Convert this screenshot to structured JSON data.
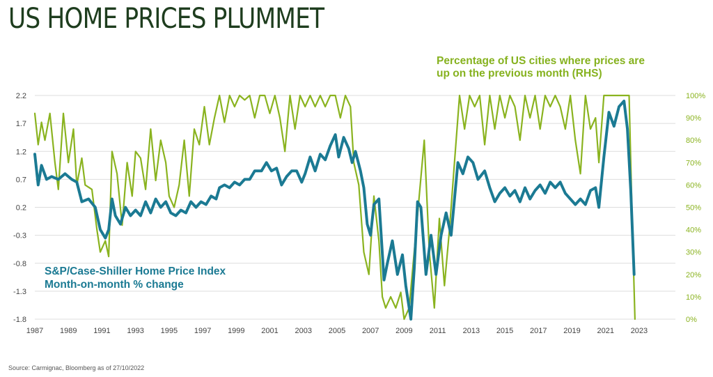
{
  "title": "US HOME PRICES PLUMMET",
  "source": "Source: Carmignac, Bloomberg as of 27/10/2022",
  "annotation_rhs": "Percentage of US cities where prices are up on the previous month (RHS)",
  "annotation_lhs_line1": "S&P/Case-Shiller Home Price Index",
  "annotation_lhs_line2": "Month-on-month % change",
  "colors": {
    "index": "#1b7a93",
    "cities": "#8ab31f",
    "title": "#1e3d1e",
    "grid": "#dddddd"
  },
  "chart_data": {
    "type": "line",
    "grid": "horizontal",
    "x_axis": {
      "range": [
        1987,
        2023.5
      ],
      "ticks": [
        "1987",
        "1989",
        "1991",
        "1993",
        "1995",
        "1997",
        "1999",
        "2001",
        "2003",
        "2005",
        "2007",
        "2009",
        "2011",
        "2013",
        "2015",
        "2017",
        "2019",
        "2021",
        "2023"
      ]
    },
    "y_left": {
      "range": [
        -1.8,
        2.2
      ],
      "ticks": [
        "2.2",
        "1.7",
        "1.2",
        "0.7",
        "0.2",
        "-0.3",
        "-0.8",
        "-1.3",
        "-1.8"
      ]
    },
    "y_right": {
      "range": [
        0,
        100
      ],
      "ticks": [
        "100%",
        "90%",
        "80%",
        "70%",
        "60%",
        "50%",
        "40%",
        "30%",
        "20%",
        "10%",
        "0%"
      ]
    },
    "series": [
      {
        "axis": "left",
        "color": "#1b7a93",
        "points": [
          [
            1987.0,
            1.15
          ],
          [
            1987.2,
            0.6
          ],
          [
            1987.4,
            0.95
          ],
          [
            1987.7,
            0.7
          ],
          [
            1988.0,
            0.75
          ],
          [
            1988.4,
            0.7
          ],
          [
            1988.8,
            0.8
          ],
          [
            1989.2,
            0.7
          ],
          [
            1989.5,
            0.65
          ],
          [
            1989.8,
            0.3
          ],
          [
            1990.2,
            0.35
          ],
          [
            1990.6,
            0.2
          ],
          [
            1990.9,
            -0.2
          ],
          [
            1991.2,
            -0.35
          ],
          [
            1991.4,
            -0.2
          ],
          [
            1991.6,
            0.35
          ],
          [
            1991.8,
            0.05
          ],
          [
            1992.1,
            -0.1
          ],
          [
            1992.4,
            0.2
          ],
          [
            1992.7,
            0.05
          ],
          [
            1993.0,
            0.15
          ],
          [
            1993.3,
            0.05
          ],
          [
            1993.6,
            0.3
          ],
          [
            1993.9,
            0.1
          ],
          [
            1994.2,
            0.35
          ],
          [
            1994.5,
            0.2
          ],
          [
            1994.8,
            0.3
          ],
          [
            1995.1,
            0.1
          ],
          [
            1995.4,
            0.05
          ],
          [
            1995.7,
            0.15
          ],
          [
            1996.0,
            0.1
          ],
          [
            1996.3,
            0.3
          ],
          [
            1996.6,
            0.2
          ],
          [
            1996.9,
            0.3
          ],
          [
            1997.2,
            0.25
          ],
          [
            1997.5,
            0.4
          ],
          [
            1997.8,
            0.35
          ],
          [
            1998.0,
            0.55
          ],
          [
            1998.3,
            0.6
          ],
          [
            1998.6,
            0.55
          ],
          [
            1998.9,
            0.65
          ],
          [
            1999.2,
            0.6
          ],
          [
            1999.5,
            0.7
          ],
          [
            1999.8,
            0.7
          ],
          [
            2000.1,
            0.85
          ],
          [
            2000.5,
            0.85
          ],
          [
            2000.8,
            1.0
          ],
          [
            2001.1,
            0.85
          ],
          [
            2001.4,
            0.9
          ],
          [
            2001.7,
            0.6
          ],
          [
            2002.0,
            0.75
          ],
          [
            2002.3,
            0.85
          ],
          [
            2002.6,
            0.85
          ],
          [
            2002.9,
            0.65
          ],
          [
            2003.1,
            0.8
          ],
          [
            2003.4,
            1.1
          ],
          [
            2003.7,
            0.85
          ],
          [
            2004.0,
            1.15
          ],
          [
            2004.3,
            1.05
          ],
          [
            2004.6,
            1.3
          ],
          [
            2004.9,
            1.5
          ],
          [
            2005.1,
            1.1
          ],
          [
            2005.4,
            1.45
          ],
          [
            2005.7,
            1.25
          ],
          [
            2005.9,
            1.0
          ],
          [
            2006.1,
            1.2
          ],
          [
            2006.4,
            0.85
          ],
          [
            2006.6,
            0.55
          ],
          [
            2006.8,
            -0.1
          ],
          [
            2007.0,
            -0.3
          ],
          [
            2007.2,
            0.25
          ],
          [
            2007.5,
            0.35
          ],
          [
            2007.8,
            -1.1
          ],
          [
            2008.0,
            -0.8
          ],
          [
            2008.3,
            -0.4
          ],
          [
            2008.6,
            -1.0
          ],
          [
            2008.9,
            -0.65
          ],
          [
            2009.1,
            -1.2
          ],
          [
            2009.4,
            -1.8
          ],
          [
            2009.6,
            -0.9
          ],
          [
            2009.8,
            0.3
          ],
          [
            2010.0,
            0.2
          ],
          [
            2010.3,
            -1.0
          ],
          [
            2010.6,
            -0.3
          ],
          [
            2010.9,
            -1.0
          ],
          [
            2011.2,
            -0.3
          ],
          [
            2011.5,
            0.1
          ],
          [
            2011.8,
            -0.3
          ],
          [
            2012.2,
            1.0
          ],
          [
            2012.5,
            0.8
          ],
          [
            2012.8,
            1.1
          ],
          [
            2013.1,
            1.0
          ],
          [
            2013.4,
            0.7
          ],
          [
            2013.8,
            0.85
          ],
          [
            2014.1,
            0.55
          ],
          [
            2014.4,
            0.3
          ],
          [
            2014.7,
            0.45
          ],
          [
            2015.0,
            0.55
          ],
          [
            2015.3,
            0.4
          ],
          [
            2015.6,
            0.5
          ],
          [
            2015.9,
            0.3
          ],
          [
            2016.2,
            0.55
          ],
          [
            2016.5,
            0.35
          ],
          [
            2016.8,
            0.5
          ],
          [
            2017.1,
            0.6
          ],
          [
            2017.4,
            0.45
          ],
          [
            2017.7,
            0.65
          ],
          [
            2018.0,
            0.55
          ],
          [
            2018.3,
            0.65
          ],
          [
            2018.6,
            0.45
          ],
          [
            2018.9,
            0.35
          ],
          [
            2019.2,
            0.25
          ],
          [
            2019.5,
            0.35
          ],
          [
            2019.8,
            0.25
          ],
          [
            2020.1,
            0.5
          ],
          [
            2020.4,
            0.55
          ],
          [
            2020.6,
            0.2
          ],
          [
            2020.9,
            1.1
          ],
          [
            2021.2,
            1.9
          ],
          [
            2021.5,
            1.65
          ],
          [
            2021.8,
            2.0
          ],
          [
            2022.1,
            2.1
          ],
          [
            2022.3,
            1.6
          ],
          [
            2022.5,
            0.5
          ],
          [
            2022.7,
            -1.0
          ]
        ]
      },
      {
        "axis": "right",
        "color": "#8ab31f",
        "points": [
          [
            1987.0,
            92
          ],
          [
            1987.2,
            78
          ],
          [
            1987.4,
            88
          ],
          [
            1987.6,
            80
          ],
          [
            1987.9,
            92
          ],
          [
            1988.2,
            70
          ],
          [
            1988.4,
            58
          ],
          [
            1988.7,
            92
          ],
          [
            1989.0,
            70
          ],
          [
            1989.3,
            85
          ],
          [
            1989.5,
            60
          ],
          [
            1989.8,
            72
          ],
          [
            1990.0,
            60
          ],
          [
            1990.4,
            58
          ],
          [
            1990.7,
            40
          ],
          [
            1990.9,
            30
          ],
          [
            1991.2,
            35
          ],
          [
            1991.4,
            28
          ],
          [
            1991.6,
            75
          ],
          [
            1991.9,
            65
          ],
          [
            1992.2,
            42
          ],
          [
            1992.5,
            70
          ],
          [
            1992.8,
            55
          ],
          [
            1993.0,
            75
          ],
          [
            1993.3,
            72
          ],
          [
            1993.6,
            58
          ],
          [
            1993.9,
            85
          ],
          [
            1994.2,
            62
          ],
          [
            1994.5,
            80
          ],
          [
            1994.8,
            70
          ],
          [
            1995.0,
            55
          ],
          [
            1995.3,
            50
          ],
          [
            1995.6,
            60
          ],
          [
            1995.9,
            80
          ],
          [
            1996.2,
            55
          ],
          [
            1996.5,
            85
          ],
          [
            1996.8,
            78
          ],
          [
            1997.1,
            95
          ],
          [
            1997.4,
            78
          ],
          [
            1997.7,
            90
          ],
          [
            1998.0,
            100
          ],
          [
            1998.3,
            88
          ],
          [
            1998.6,
            100
          ],
          [
            1998.9,
            95
          ],
          [
            1999.2,
            100
          ],
          [
            1999.5,
            98
          ],
          [
            1999.8,
            100
          ],
          [
            2000.1,
            90
          ],
          [
            2000.4,
            100
          ],
          [
            2000.7,
            100
          ],
          [
            2001.0,
            92
          ],
          [
            2001.3,
            100
          ],
          [
            2001.6,
            90
          ],
          [
            2001.9,
            75
          ],
          [
            2002.2,
            100
          ],
          [
            2002.5,
            85
          ],
          [
            2002.8,
            100
          ],
          [
            2003.1,
            95
          ],
          [
            2003.4,
            100
          ],
          [
            2003.7,
            95
          ],
          [
            2004.0,
            100
          ],
          [
            2004.3,
            95
          ],
          [
            2004.6,
            100
          ],
          [
            2004.9,
            100
          ],
          [
            2005.2,
            90
          ],
          [
            2005.5,
            100
          ],
          [
            2005.8,
            95
          ],
          [
            2006.0,
            70
          ],
          [
            2006.3,
            60
          ],
          [
            2006.6,
            30
          ],
          [
            2006.9,
            20
          ],
          [
            2007.2,
            55
          ],
          [
            2007.5,
            35
          ],
          [
            2007.7,
            10
          ],
          [
            2007.9,
            5
          ],
          [
            2008.2,
            10
          ],
          [
            2008.5,
            5
          ],
          [
            2008.8,
            12
          ],
          [
            2009.0,
            0
          ],
          [
            2009.3,
            5
          ],
          [
            2009.6,
            30
          ],
          [
            2009.9,
            55
          ],
          [
            2010.2,
            80
          ],
          [
            2010.5,
            30
          ],
          [
            2010.8,
            5
          ],
          [
            2011.1,
            45
          ],
          [
            2011.4,
            15
          ],
          [
            2011.7,
            40
          ],
          [
            2012.0,
            70
          ],
          [
            2012.3,
            100
          ],
          [
            2012.6,
            85
          ],
          [
            2012.9,
            100
          ],
          [
            2013.2,
            95
          ],
          [
            2013.5,
            100
          ],
          [
            2013.8,
            78
          ],
          [
            2014.1,
            100
          ],
          [
            2014.4,
            85
          ],
          [
            2014.7,
            100
          ],
          [
            2015.0,
            90
          ],
          [
            2015.3,
            100
          ],
          [
            2015.6,
            95
          ],
          [
            2015.9,
            80
          ],
          [
            2016.2,
            100
          ],
          [
            2016.5,
            90
          ],
          [
            2016.8,
            100
          ],
          [
            2017.1,
            85
          ],
          [
            2017.4,
            100
          ],
          [
            2017.7,
            95
          ],
          [
            2018.0,
            100
          ],
          [
            2018.3,
            95
          ],
          [
            2018.6,
            85
          ],
          [
            2018.9,
            100
          ],
          [
            2019.2,
            80
          ],
          [
            2019.5,
            65
          ],
          [
            2019.8,
            100
          ],
          [
            2020.1,
            85
          ],
          [
            2020.4,
            90
          ],
          [
            2020.6,
            70
          ],
          [
            2020.9,
            100
          ],
          [
            2021.2,
            100
          ],
          [
            2021.5,
            100
          ],
          [
            2021.8,
            100
          ],
          [
            2022.1,
            100
          ],
          [
            2022.4,
            100
          ],
          [
            2022.6,
            40
          ],
          [
            2022.75,
            0
          ]
        ]
      }
    ]
  }
}
